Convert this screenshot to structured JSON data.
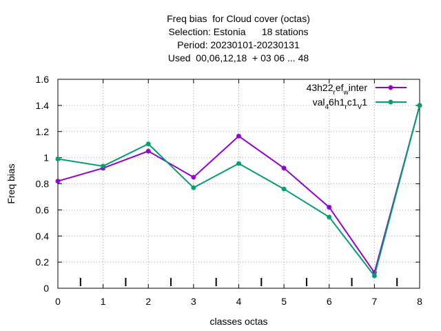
{
  "chart_data": {
    "type": "line",
    "title_lines": [
      "Freq bias  for Cloud cover (octas)",
      "Selection: Estonia      18 stations",
      "Period: 20230101-20230131",
      "Used  00,06,12,18  + 03 06 ... 48"
    ],
    "xlabel": "classes octas",
    "ylabel": "Freq bias",
    "xlim": [
      0,
      8
    ],
    "ylim": [
      0,
      1.6
    ],
    "x_ticks": [
      0,
      1,
      2,
      3,
      4,
      5,
      6,
      7,
      8
    ],
    "y_ticks": [
      0,
      0.2,
      0.4,
      0.6,
      0.8,
      1,
      1.2,
      1.4,
      1.6
    ],
    "x_tick_labels": [
      "0",
      "1",
      "2",
      "3",
      "4",
      "5",
      "6",
      "7",
      "8"
    ],
    "y_tick_labels": [
      "0",
      "0.2",
      "0.4",
      "0.6",
      "0.8",
      "1",
      "1.2",
      "1.4",
      "1.6"
    ],
    "grid": true,
    "legend_position": "top-right",
    "x": [
      0,
      1,
      2,
      3,
      4,
      5,
      6,
      7,
      8
    ],
    "series": [
      {
        "name": "43h22_ref_winter",
        "legend_parts": [
          [
            "43h22",
            "n"
          ],
          [
            "r",
            "sub"
          ],
          [
            "ef",
            "n"
          ],
          [
            "w",
            "sub"
          ],
          [
            "inter",
            "n"
          ]
        ],
        "color": "#9400d3",
        "values": [
          0.82,
          0.92,
          1.05,
          0.85,
          1.165,
          0.92,
          0.62,
          0.12,
          1.4
        ]
      },
      {
        "name": "val_4_6h1_rc1_v1",
        "legend_parts": [
          [
            "val",
            "n"
          ],
          [
            "4",
            "sub"
          ],
          [
            "6h1",
            "n"
          ],
          [
            "r",
            "sub"
          ],
          [
            "c1",
            "n"
          ],
          [
            "V",
            "sub"
          ],
          [
            "1",
            "n"
          ]
        ],
        "color": "#009e73",
        "values": [
          0.99,
          0.935,
          1.105,
          0.77,
          0.955,
          0.76,
          0.545,
          0.095,
          1.4
        ]
      }
    ],
    "bottom_ticks_x": [
      0.5,
      1.5,
      2.5,
      3.5,
      4.5,
      5.5,
      6.5,
      7.5
    ]
  }
}
